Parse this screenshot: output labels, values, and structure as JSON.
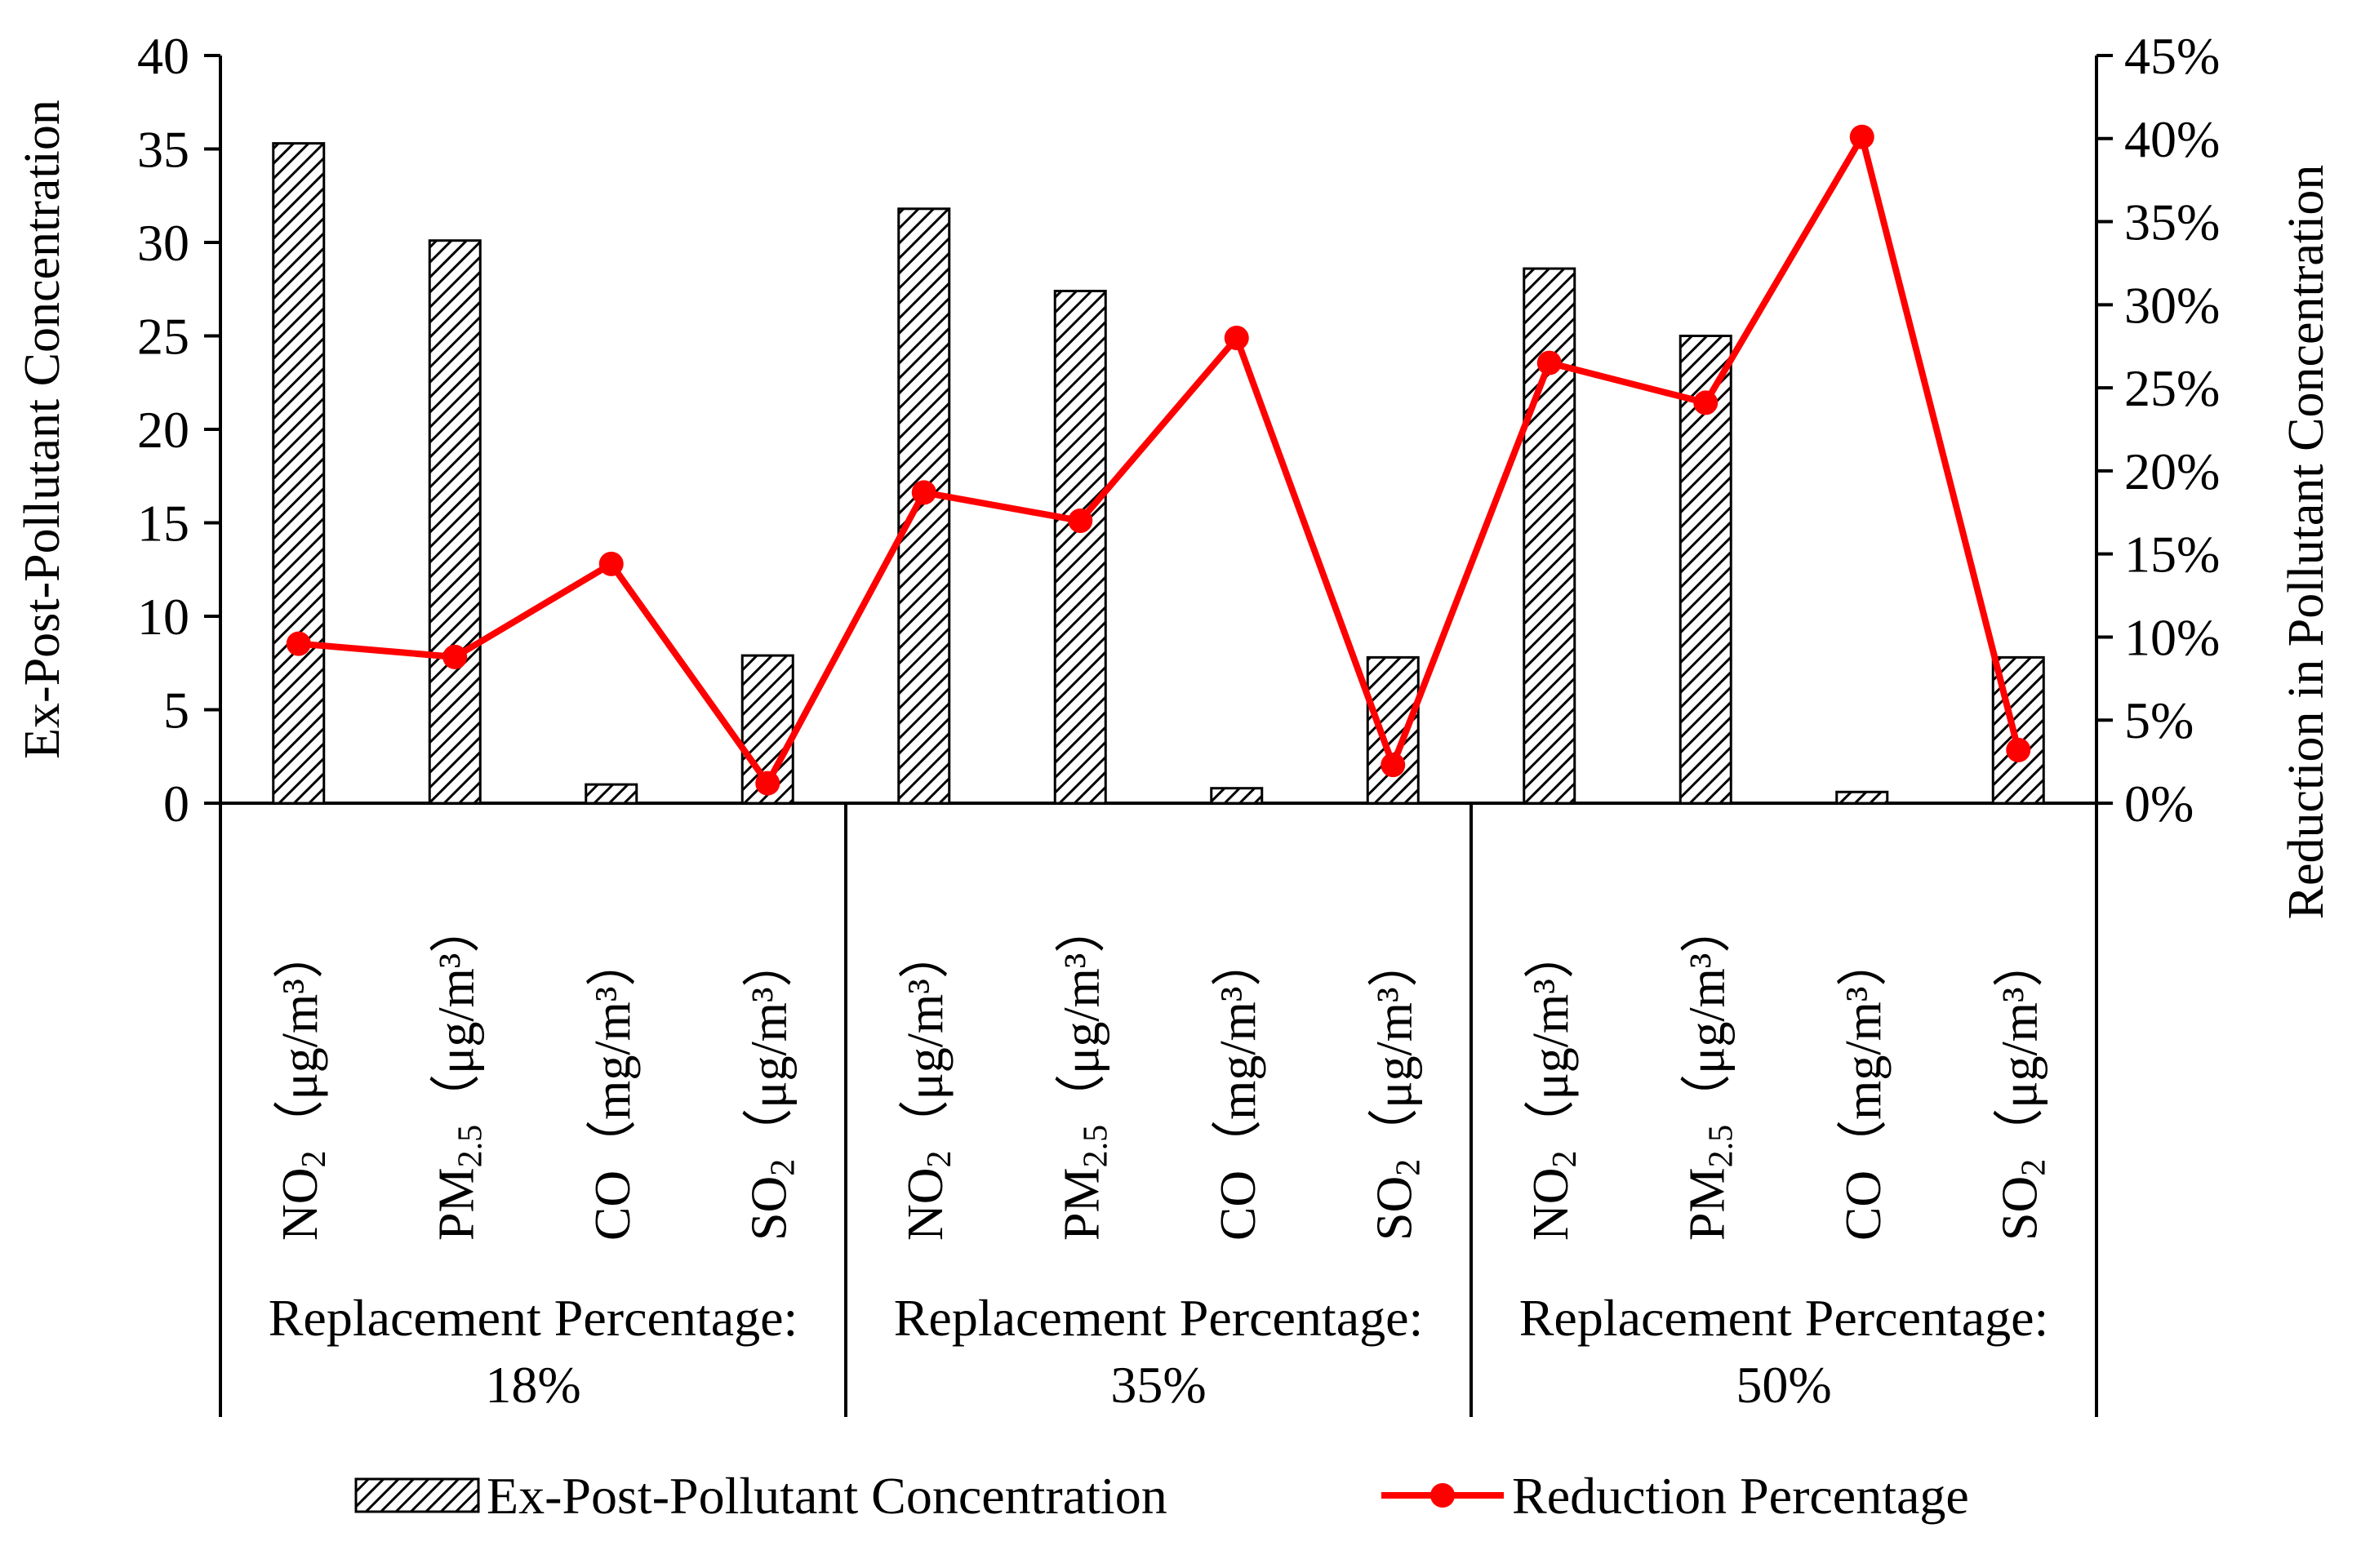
{
  "chart_data": {
    "type": "bar",
    "title": "",
    "combo": "bar + line (secondary axis)",
    "ylabel": "Ex-Post-Pollutant Concentration",
    "y2label": "Reduction in Pollutant Concentration",
    "ylim": [
      0,
      40
    ],
    "y2lim": [
      0,
      0.45
    ],
    "yticks": [
      "0",
      "5",
      "10",
      "15",
      "20",
      "25",
      "30",
      "35",
      "40"
    ],
    "y2ticks": [
      "0%",
      "5%",
      "10%",
      "15%",
      "20%",
      "25%",
      "30%",
      "35%",
      "40%",
      "45%"
    ],
    "groups": [
      {
        "label_line1": "Replacement Percentage:",
        "label_line2": "18%",
        "categories": [
          {
            "base": "NO",
            "sub": "2",
            "unit": "（μg/m³）"
          },
          {
            "base": "PM",
            "sub": "2.5",
            "unit": "（μg/m³）"
          },
          {
            "base": "CO",
            "sub": "",
            "unit": "（mg/m³）"
          },
          {
            "base": "SO",
            "sub": "2",
            "unit": "（μg/m³）"
          }
        ]
      },
      {
        "label_line1": "Replacement Percentage:",
        "label_line2": "35%",
        "categories": [
          {
            "base": "NO",
            "sub": "2",
            "unit": "（μg/m³）"
          },
          {
            "base": "PM",
            "sub": "2.5",
            "unit": "（μg/m³）"
          },
          {
            "base": "CO",
            "sub": "",
            "unit": "（mg/m³）"
          },
          {
            "base": "SO",
            "sub": "2",
            "unit": "（μg/m³）"
          }
        ]
      },
      {
        "label_line1": "Replacement Percentage:",
        "label_line2": "50%",
        "categories": [
          {
            "base": "NO",
            "sub": "2",
            "unit": "（μg/m³）"
          },
          {
            "base": "PM",
            "sub": "2.5",
            "unit": "（μg/m³）"
          },
          {
            "base": "CO",
            "sub": "",
            "unit": "（mg/m³）"
          },
          {
            "base": "SO",
            "sub": "2",
            "unit": "（μg/m³）"
          }
        ]
      }
    ],
    "series": [
      {
        "name": "Ex-Post-Pollutant Concentration",
        "type": "bar",
        "axis": "left",
        "values": [
          35.3,
          30.1,
          1.0,
          7.9,
          31.8,
          27.4,
          0.8,
          7.8,
          28.6,
          25.0,
          0.6,
          7.8
        ]
      },
      {
        "name": "Reduction Percentage",
        "type": "line",
        "axis": "right",
        "values": [
          0.096,
          0.088,
          0.144,
          0.012,
          0.187,
          0.17,
          0.28,
          0.023,
          0.265,
          0.241,
          0.401,
          0.032
        ]
      }
    ],
    "legend": "bottom",
    "colors": {
      "line": "#ff0000",
      "bar_stroke": "#000000",
      "bar_fill": "#ffffff",
      "axis": "#000000"
    }
  }
}
